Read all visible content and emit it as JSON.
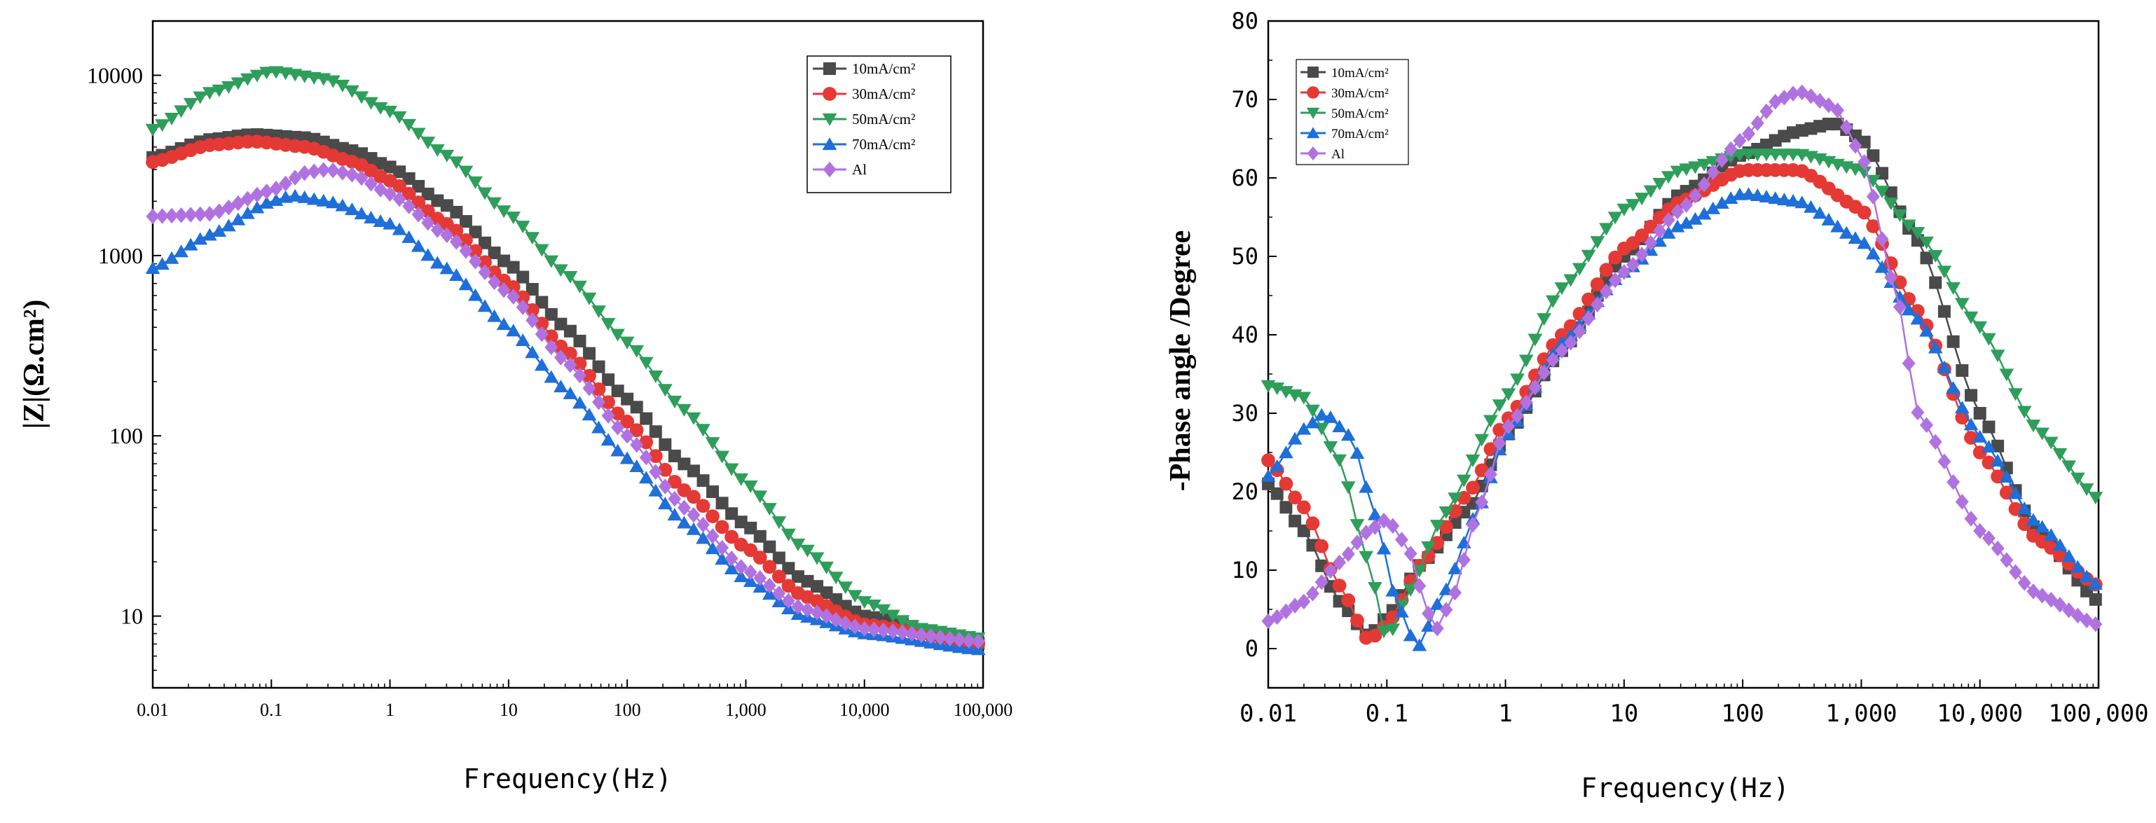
{
  "chart_data": [
    {
      "type": "line",
      "title": "",
      "xlabel": "Frequency(Hz)",
      "ylabel": "|Z|(Ω.cm²)",
      "xscale": "log",
      "yscale": "log",
      "xlim": [
        0.01,
        100000
      ],
      "ylim": [
        4,
        20000
      ],
      "grid": false,
      "legend_position": "top-right",
      "xticks": [
        {
          "v": 0.01,
          "label": "0.01"
        },
        {
          "v": 0.1,
          "label": "0.1"
        },
        {
          "v": 1,
          "label": "1"
        },
        {
          "v": 10,
          "label": "10"
        },
        {
          "v": 100,
          "label": "100"
        },
        {
          "v": 1000,
          "label": "1,000"
        },
        {
          "v": 10000,
          "label": "10,000"
        },
        {
          "v": 100000,
          "label": "100,000"
        }
      ],
      "yticks": [
        {
          "v": 10,
          "label": "10"
        },
        {
          "v": 100,
          "label": "100"
        },
        {
          "v": 1000,
          "label": "1000"
        },
        {
          "v": 10000,
          "label": "10000"
        }
      ],
      "series": [
        {
          "name": "10mA/cm²",
          "color": "#4a4a4a",
          "marker": "square",
          "x": [
            0.01,
            0.03,
            0.07,
            0.2,
            0.5,
            1,
            3,
            10,
            30,
            100,
            300,
            1000,
            3000,
            10000,
            100000
          ],
          "y": [
            3500,
            4400,
            4700,
            4500,
            3800,
            3100,
            1900,
            900,
            400,
            160,
            70,
            32,
            16,
            10,
            7
          ]
        },
        {
          "name": "30mA/cm²",
          "color": "#e53935",
          "marker": "circle",
          "x": [
            0.01,
            0.03,
            0.07,
            0.2,
            0.5,
            1,
            3,
            10,
            30,
            100,
            300,
            1000,
            3000,
            10000,
            100000
          ],
          "y": [
            3300,
            4100,
            4300,
            4000,
            3300,
            2600,
            1500,
            700,
            300,
            120,
            50,
            24,
            13,
            9,
            7
          ]
        },
        {
          "name": "50mA/cm²",
          "color": "#2e9e5b",
          "marker": "triangle-down",
          "x": [
            0.01,
            0.03,
            0.1,
            0.3,
            1,
            3,
            10,
            30,
            100,
            300,
            1000,
            3000,
            10000,
            30000,
            100000
          ],
          "y": [
            5000,
            8000,
            10500,
            9500,
            6300,
            3600,
            1700,
            800,
            330,
            140,
            55,
            24,
            12,
            8.5,
            7.5
          ]
        },
        {
          "name": "70mA/cm²",
          "color": "#1e6fd9",
          "marker": "triangle-up",
          "x": [
            0.01,
            0.03,
            0.1,
            0.15,
            0.3,
            1,
            3,
            10,
            30,
            100,
            300,
            1000,
            3000,
            10000,
            100000
          ],
          "y": [
            850,
            1300,
            2000,
            2150,
            2000,
            1500,
            850,
            400,
            180,
            75,
            33,
            16,
            10,
            8,
            6.5
          ]
        },
        {
          "name": "Al",
          "color": "#b072e0",
          "marker": "diamond",
          "x": [
            0.01,
            0.03,
            0.1,
            0.2,
            0.3,
            0.5,
            1,
            3,
            10,
            30,
            100,
            300,
            1000,
            3000,
            10000,
            100000
          ],
          "y": [
            1650,
            1700,
            2300,
            2900,
            3000,
            2800,
            2200,
            1300,
            620,
            260,
            100,
            40,
            18,
            11,
            8.5,
            7.2
          ]
        }
      ]
    },
    {
      "type": "line",
      "title": "",
      "xlabel": "Frequency(Hz)",
      "ylabel": "-Phase angle /Degree",
      "xscale": "log",
      "yscale": "linear",
      "xlim": [
        0.01,
        100000
      ],
      "ylim": [
        -5,
        80
      ],
      "grid": false,
      "legend_position": "top-left",
      "xticks": [
        {
          "v": 0.01,
          "label": "0.01"
        },
        {
          "v": 0.1,
          "label": "0.1"
        },
        {
          "v": 1,
          "label": "1"
        },
        {
          "v": 10,
          "label": "10"
        },
        {
          "v": 100,
          "label": "100"
        },
        {
          "v": 1000,
          "label": "1,000"
        },
        {
          "v": 10000,
          "label": "10,000"
        },
        {
          "v": 100000,
          "label": "100,000"
        }
      ],
      "yticks": [
        {
          "v": 0,
          "label": "0"
        },
        {
          "v": 10,
          "label": "10"
        },
        {
          "v": 20,
          "label": "20"
        },
        {
          "v": 30,
          "label": "30"
        },
        {
          "v": 40,
          "label": "40"
        },
        {
          "v": 50,
          "label": "50"
        },
        {
          "v": 60,
          "label": "60"
        },
        {
          "v": 70,
          "label": "70"
        },
        {
          "v": 80,
          "label": "80"
        }
      ],
      "series": [
        {
          "name": "10mA/cm²",
          "color": "#4a4a4a",
          "marker": "square",
          "x": [
            0.01,
            0.02,
            0.04,
            0.07,
            0.1,
            0.2,
            0.5,
            1,
            3,
            10,
            30,
            100,
            300,
            600,
            1000,
            3000,
            10000,
            30000,
            100000
          ],
          "y": [
            21,
            15,
            6,
            1.5,
            4,
            11,
            18,
            27,
            38,
            50,
            58,
            63,
            66,
            67,
            65,
            52,
            30,
            15,
            6
          ]
        },
        {
          "name": "30mA/cm²",
          "color": "#e53935",
          "marker": "circle",
          "x": [
            0.01,
            0.02,
            0.04,
            0.07,
            0.1,
            0.2,
            0.5,
            1,
            3,
            10,
            30,
            100,
            300,
            1000,
            3000,
            10000,
            30000,
            100000
          ],
          "y": [
            24,
            18,
            8,
            1,
            3,
            11,
            20,
            29,
            40,
            51,
            57,
            61,
            61,
            56,
            43,
            25,
            14,
            8
          ]
        },
        {
          "name": "50mA/cm²",
          "color": "#2e9e5b",
          "marker": "triangle-down",
          "x": [
            0.01,
            0.02,
            0.04,
            0.07,
            0.1,
            0.15,
            0.3,
            1,
            3,
            10,
            30,
            100,
            300,
            1000,
            3000,
            10000,
            30000,
            100000
          ],
          "y": [
            33.5,
            32,
            24,
            11,
            1,
            7,
            17,
            32,
            46,
            56,
            61,
            63,
            63,
            61,
            53,
            41,
            28,
            19
          ]
        },
        {
          "name": "70mA/cm²",
          "color": "#1e6fd9",
          "marker": "triangle-up",
          "x": [
            0.01,
            0.02,
            0.03,
            0.05,
            0.08,
            0.12,
            0.18,
            0.3,
            0.6,
            1,
            3,
            10,
            30,
            100,
            300,
            1000,
            3000,
            10000,
            30000,
            100000
          ],
          "y": [
            22,
            28,
            30,
            27,
            17,
            6,
            0,
            7,
            18,
            27,
            39,
            48,
            54,
            58,
            57,
            52,
            42,
            27,
            16,
            8
          ]
        },
        {
          "name": "Al",
          "color": "#b072e0",
          "marker": "diamond",
          "x": [
            0.01,
            0.02,
            0.04,
            0.07,
            0.1,
            0.15,
            0.2,
            0.25,
            0.35,
            0.6,
            1,
            3,
            10,
            30,
            100,
            200,
            300,
            600,
            1000,
            2000,
            3000,
            10000,
            30000,
            100000
          ],
          "y": [
            3.5,
            6,
            11,
            15,
            16.5,
            13,
            7,
            2,
            6,
            18,
            28,
            38,
            48,
            56,
            65,
            70,
            71,
            69,
            63,
            45,
            30,
            15,
            7,
            3
          ]
        }
      ]
    }
  ]
}
